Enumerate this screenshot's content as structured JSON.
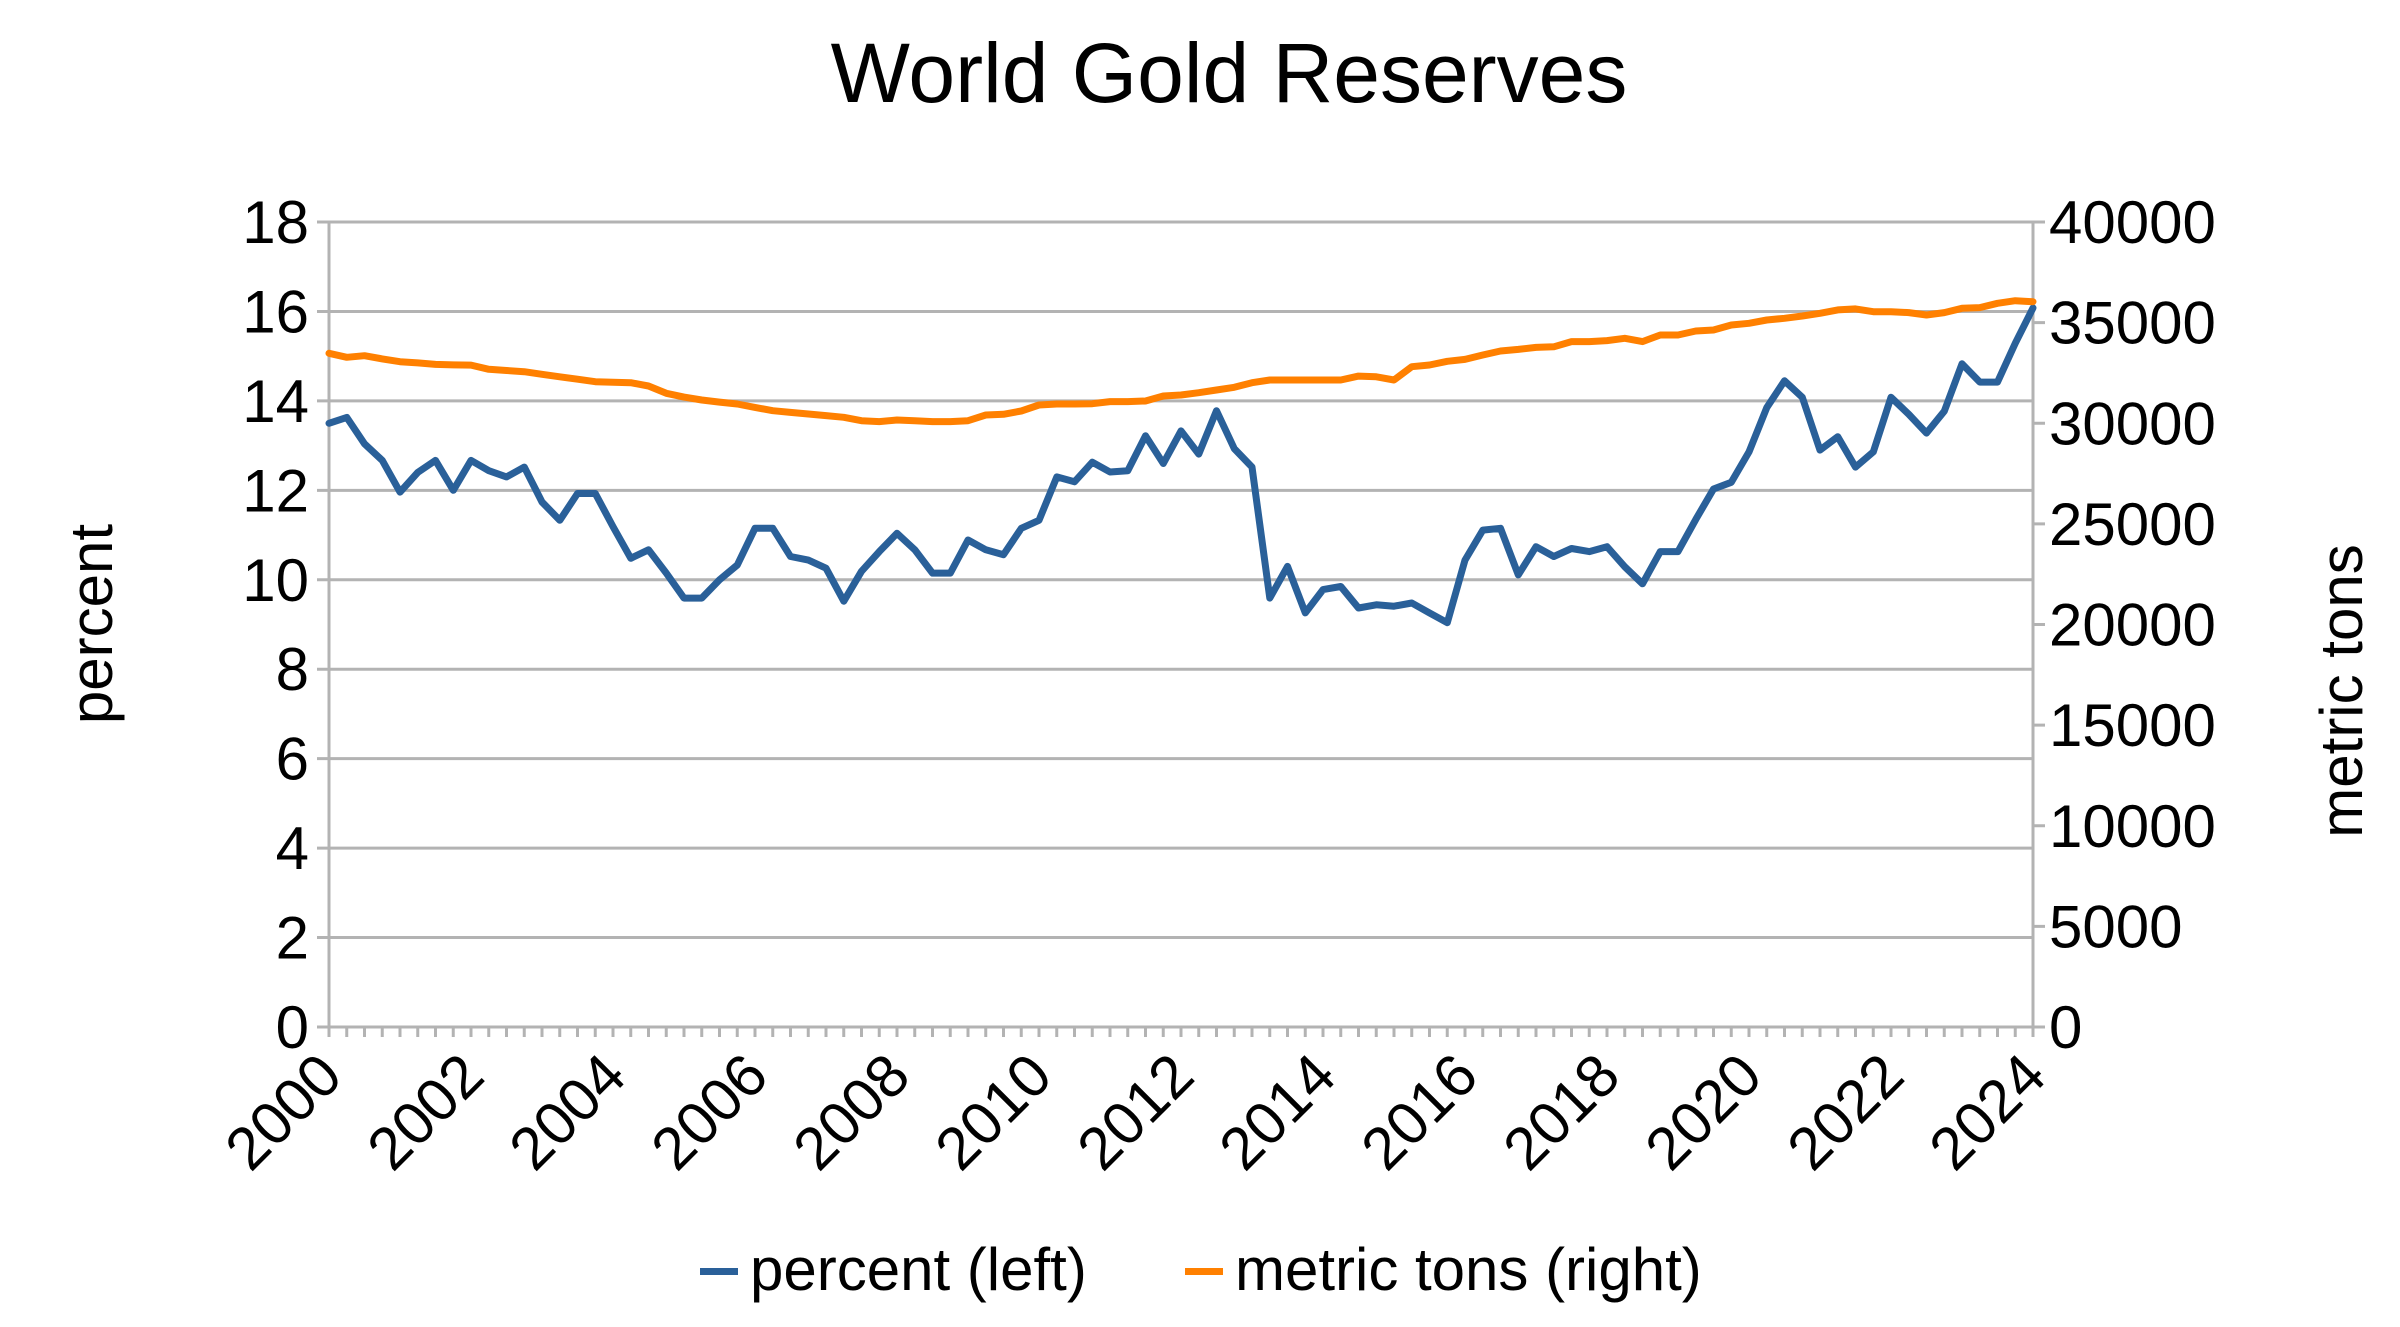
{
  "chart_data": {
    "type": "line",
    "title": "World Gold Reserves",
    "xlabel": "",
    "ylabel": "percent",
    "y2label": "metric tons",
    "x_start_year": 2000,
    "x_step": "quarter",
    "xlim": [
      2000,
      2024
    ],
    "ylim": [
      0,
      18
    ],
    "y2lim": [
      0,
      40000
    ],
    "grid": true,
    "legend_position": "bottom",
    "x_ticks": [
      "2000",
      "2002",
      "2004",
      "2006",
      "2008",
      "2010",
      "2012",
      "2014",
      "2016",
      "2018",
      "2020",
      "2022",
      "2024"
    ],
    "y_ticks": [
      "0",
      "2",
      "4",
      "6",
      "8",
      "10",
      "12",
      "14",
      "16",
      "18"
    ],
    "y2_ticks": [
      "0",
      "5000",
      "10000",
      "15000",
      "20000",
      "25000",
      "30000",
      "35000",
      "40000"
    ],
    "series": [
      {
        "name": "percent (left)",
        "axis": "left",
        "color": "#2a6099",
        "values": [
          13.5,
          13.63,
          13.04,
          12.67,
          11.96,
          12.4,
          12.67,
          12.0,
          12.67,
          12.44,
          12.3,
          12.52,
          11.74,
          11.33,
          11.93,
          11.93,
          11.19,
          10.48,
          10.67,
          10.15,
          9.59,
          9.59,
          10.0,
          10.33,
          11.15,
          11.15,
          10.52,
          10.44,
          10.26,
          9.52,
          10.19,
          10.63,
          11.04,
          10.67,
          10.15,
          10.15,
          10.89,
          10.67,
          10.56,
          11.15,
          11.33,
          12.3,
          12.19,
          12.63,
          12.41,
          12.44,
          13.22,
          12.6,
          13.33,
          12.81,
          13.78,
          12.93,
          12.52,
          9.59,
          10.3,
          9.26,
          9.78,
          9.85,
          9.37,
          9.44,
          9.41,
          9.48,
          9.26,
          9.04,
          10.44,
          11.11,
          11.15,
          10.11,
          10.74,
          10.52,
          10.7,
          10.63,
          10.74,
          10.29,
          9.91,
          10.63,
          10.63,
          11.35,
          12.03,
          12.18,
          12.86,
          13.85,
          14.45,
          14.08,
          12.9,
          13.2,
          12.52,
          12.86,
          14.08,
          13.7,
          13.28,
          13.77,
          14.83,
          14.42,
          14.42,
          15.29,
          16.08
        ]
      },
      {
        "name": "metric tons (right)",
        "axis": "right",
        "color": "#ff8000",
        "values": [
          33475,
          33275,
          33355,
          33200,
          33060,
          33000,
          32925,
          32900,
          32890,
          32680,
          32620,
          32560,
          32430,
          32310,
          32190,
          32065,
          32040,
          32015,
          31850,
          31490,
          31300,
          31155,
          31050,
          30955,
          30790,
          30625,
          30540,
          30460,
          30380,
          30295,
          30125,
          30080,
          30160,
          30125,
          30080,
          30080,
          30125,
          30410,
          30445,
          30610,
          30905,
          30955,
          30955,
          30970,
          31075,
          31075,
          31105,
          31355,
          31405,
          31520,
          31650,
          31785,
          32015,
          32150,
          32150,
          32150,
          32150,
          32150,
          32345,
          32310,
          32150,
          32810,
          32895,
          33080,
          33175,
          33390,
          33590,
          33670,
          33770,
          33800,
          34055,
          34055,
          34105,
          34220,
          34055,
          34385,
          34385,
          34585,
          34635,
          34880,
          34965,
          35130,
          35215,
          35330,
          35465,
          35630,
          35680,
          35545,
          35545,
          35500,
          35380,
          35500,
          35710,
          35745,
          35960,
          36090,
          36040
        ]
      }
    ]
  }
}
